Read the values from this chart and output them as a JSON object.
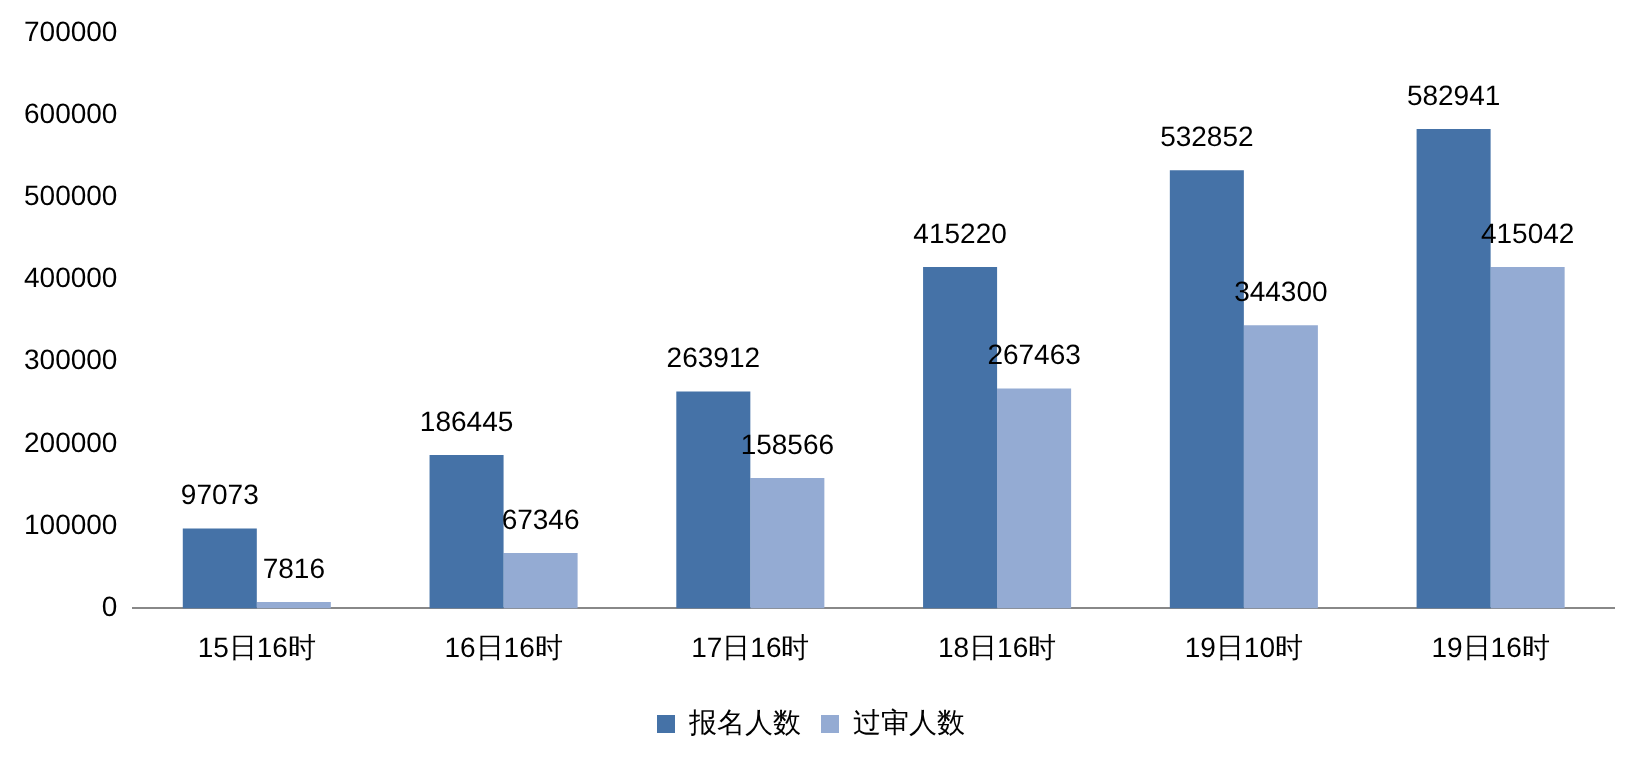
{
  "chart_data": {
    "type": "bar",
    "categories": [
      "15日16时",
      "16日16时",
      "17日16时",
      "18日16时",
      "19日10时",
      "19日16时"
    ],
    "series": [
      {
        "name": "报名人数",
        "color": "#4572a7",
        "values": [
          97073,
          186445,
          263912,
          415220,
          532852,
          582941
        ]
      },
      {
        "name": "过审人数",
        "color": "#94abd3",
        "values": [
          7816,
          67346,
          158566,
          267463,
          344300,
          415042
        ]
      }
    ],
    "ylim": [
      0,
      700000
    ],
    "yticks": [
      0,
      100000,
      200000,
      300000,
      400000,
      500000,
      600000,
      700000
    ],
    "grid": false,
    "legend": "bottom",
    "data_labels": true
  }
}
